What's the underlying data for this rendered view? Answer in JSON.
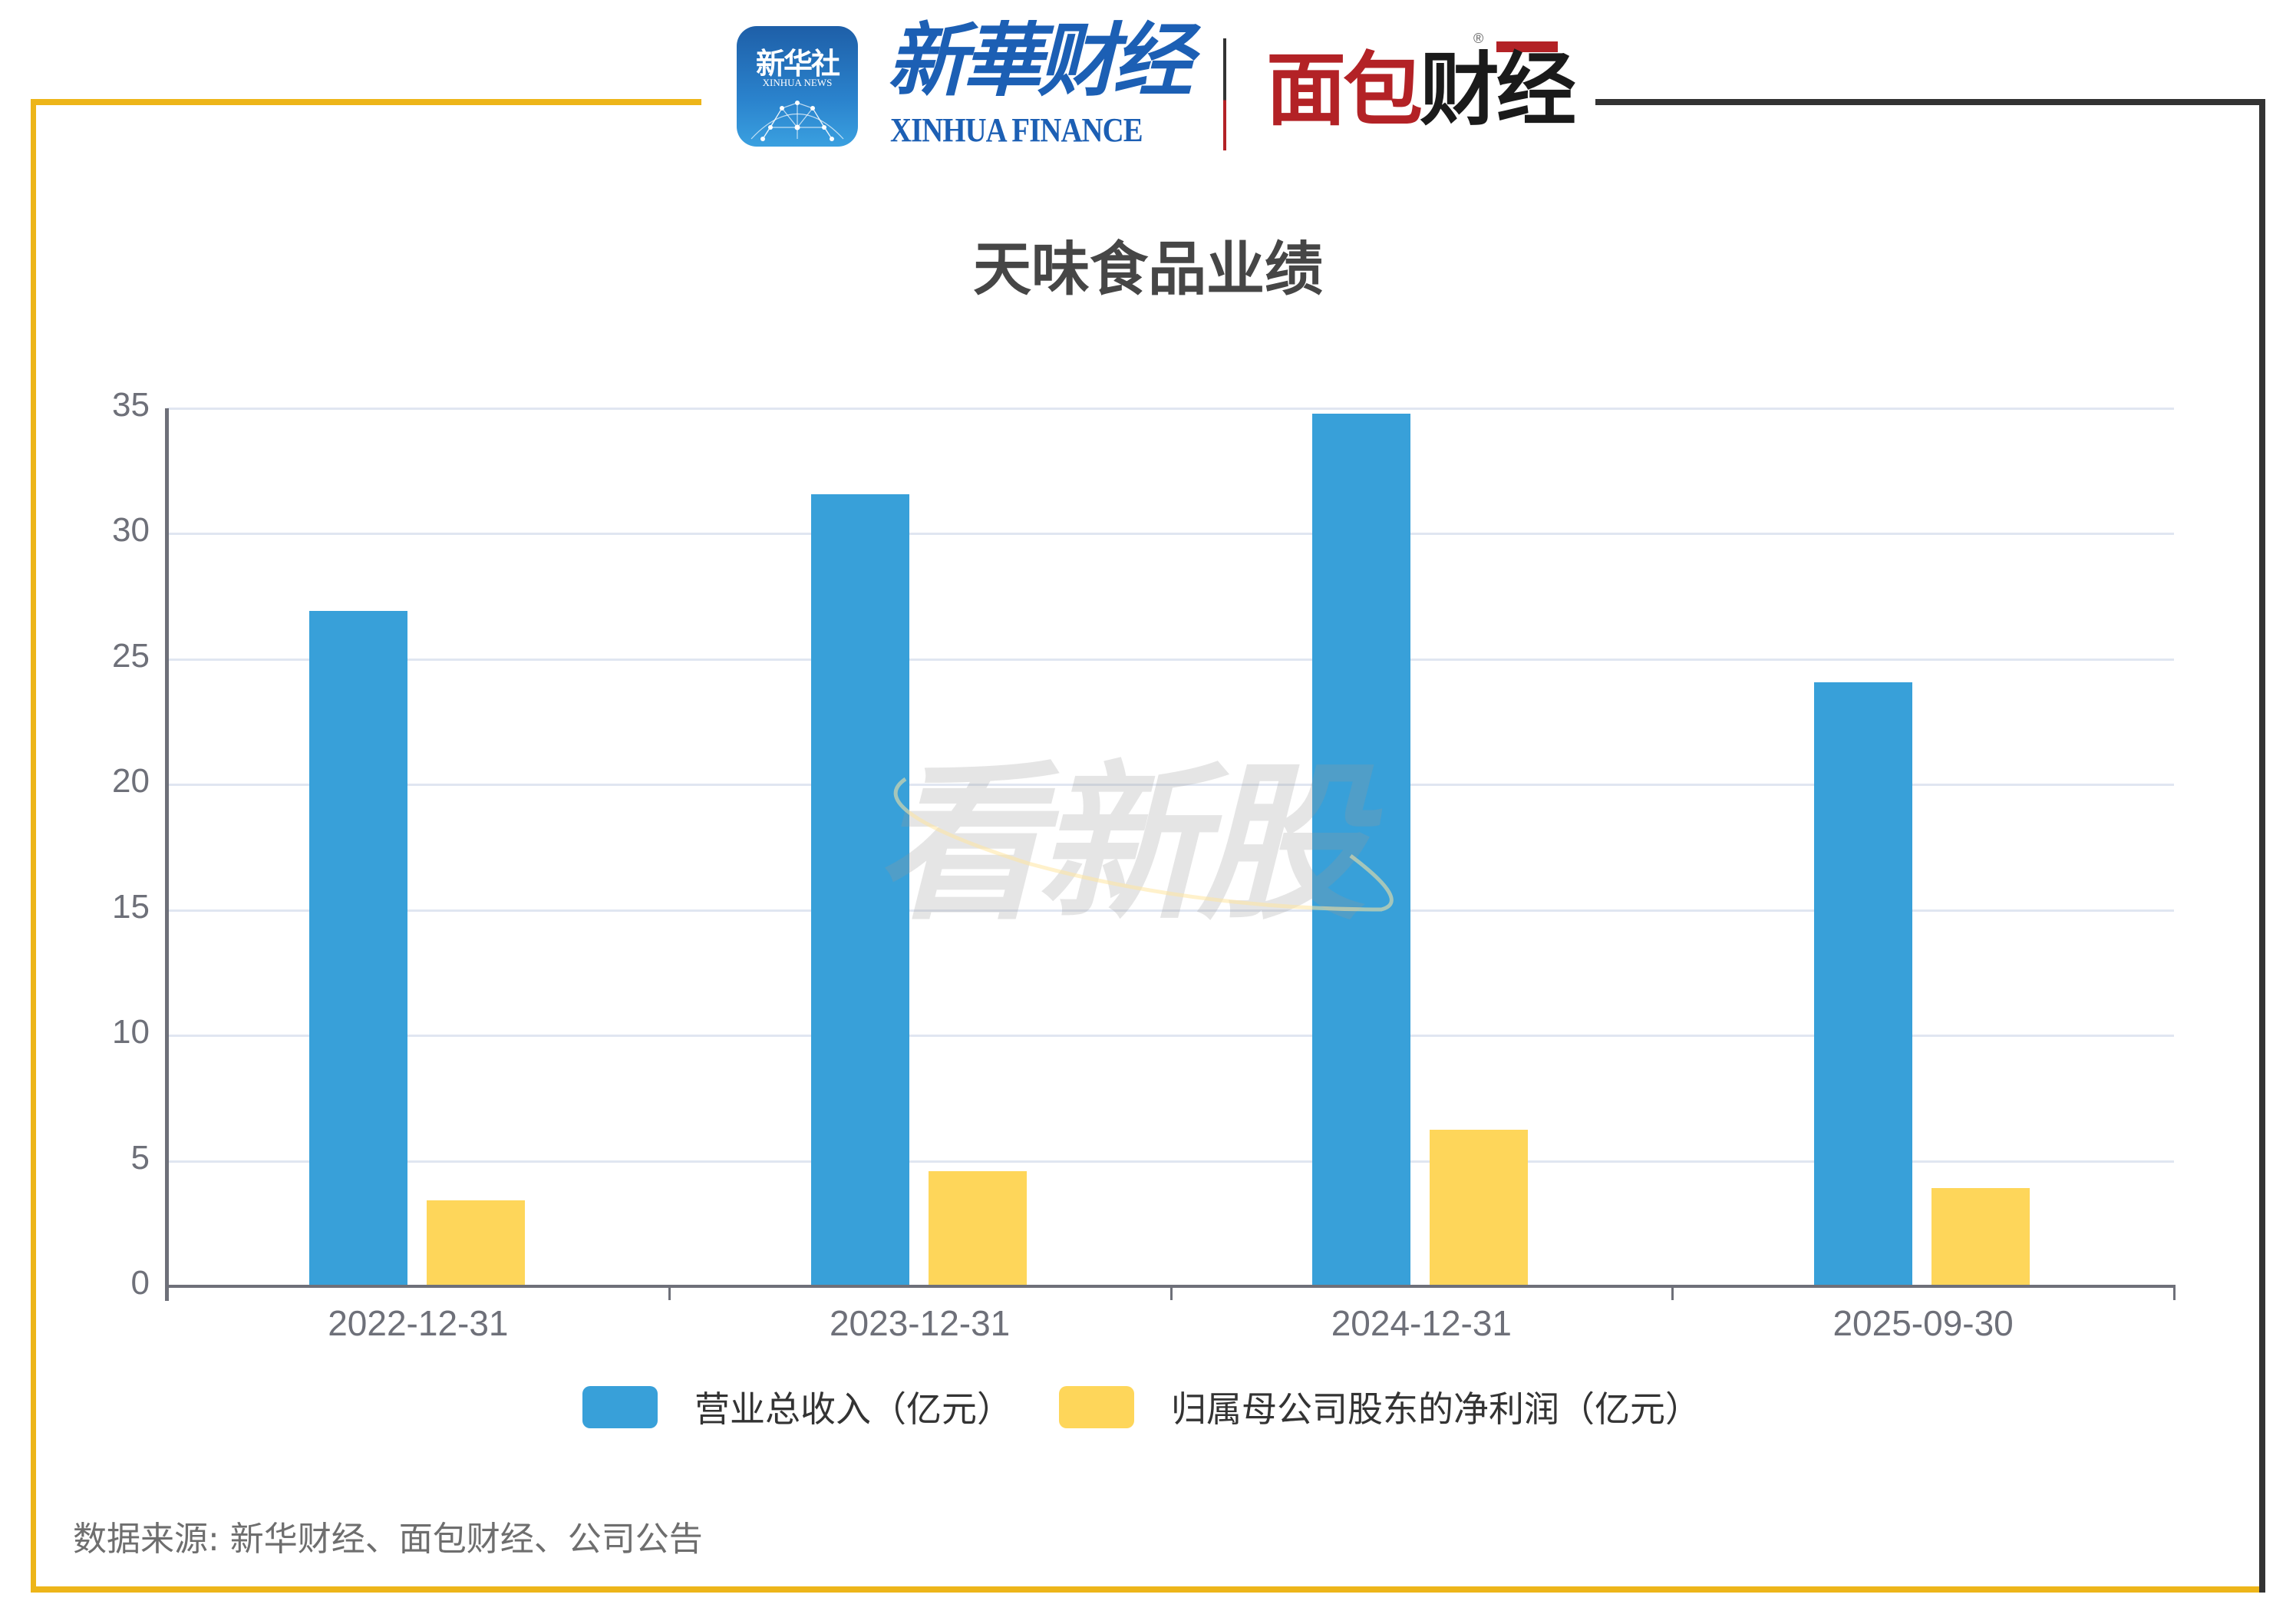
{
  "header": {
    "xinhua_icon": {
      "cn": "新华社",
      "en": "XINHUA NEWS"
    },
    "xinhua_finance": {
      "cn": "新華财经",
      "en": "XINHUA FINANCE"
    },
    "mianbao": {
      "part1": "面包",
      "part2": "财经",
      "reg_mark": "®"
    }
  },
  "colors": {
    "revenue": "#38a0d9",
    "profit": "#fed65a",
    "frame_left": "#edb519",
    "frame_right": "#333333",
    "axis": "#6e7079",
    "grid": "#e0e6f1"
  },
  "watermark": "看新股",
  "source_note": "数据来源: 新华财经、面包财经、公司公告",
  "chart_data": {
    "type": "bar",
    "title": "天味食品业绩",
    "categories": [
      "2022-12-31",
      "2023-12-31",
      "2024-12-31",
      "2025-09-30"
    ],
    "series": [
      {
        "name": "营业总收入（亿元）",
        "color": "#38a0d9",
        "values": [
          26.93,
          31.56,
          34.79,
          24.07
        ]
      },
      {
        "name": "归属母公司股东的净利润（亿元）",
        "color": "#fed65a",
        "values": [
          3.43,
          4.6,
          6.25,
          3.93
        ]
      }
    ],
    "xlabel": "",
    "ylabel": "",
    "ylim": [
      0,
      35
    ],
    "yticks": [
      "0",
      "5",
      "10",
      "15",
      "20",
      "25",
      "30",
      "35"
    ],
    "grid": true,
    "legend_position": "bottom"
  }
}
